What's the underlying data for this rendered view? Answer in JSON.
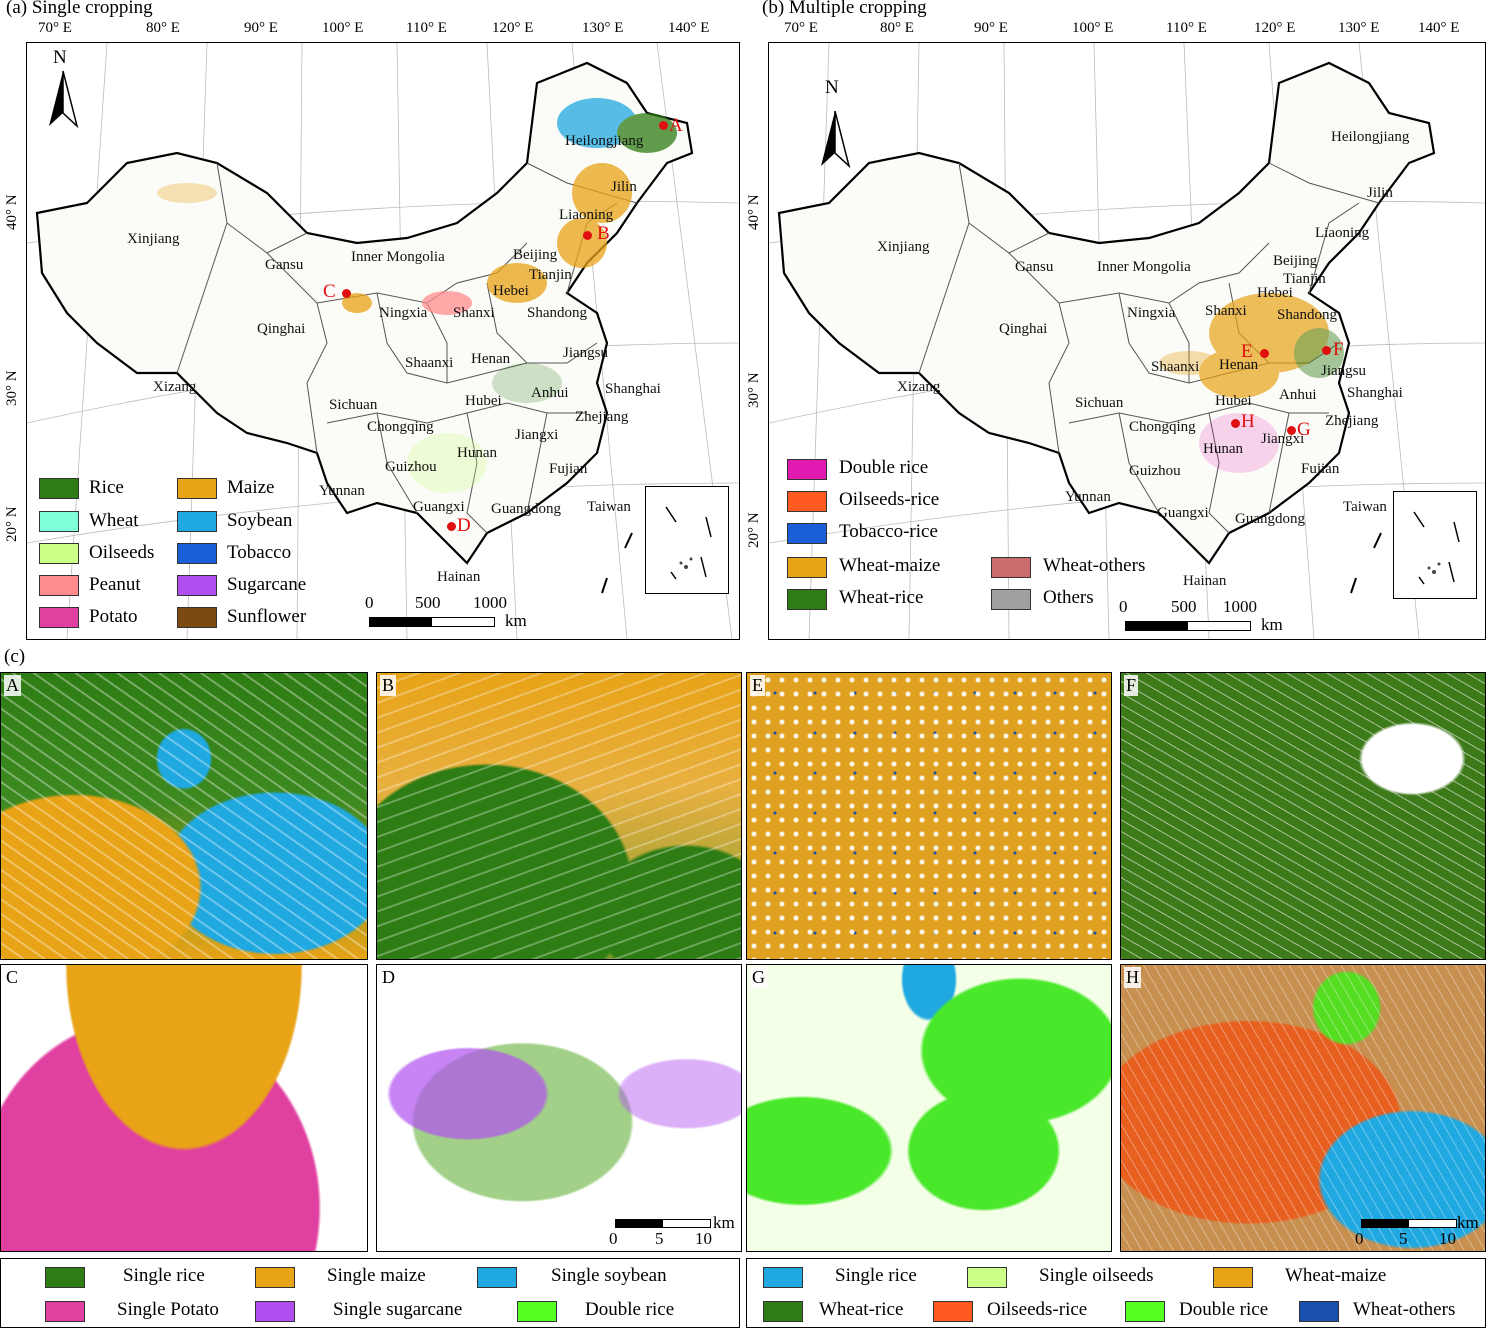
{
  "panel_a": {
    "title": "(a) Single cropping",
    "lon_labels": [
      "70° E",
      "80° E",
      "90° E",
      "100° E",
      "110° E",
      "120° E",
      "130° E",
      "140° E"
    ],
    "lat_labels": [
      "40° N",
      "30° N",
      "20° N"
    ],
    "north": "N",
    "provinces": [
      "Heilongjiang",
      "Jilin",
      "Liaoning",
      "Xinjiang",
      "Gansu",
      "Inner Mongolia",
      "Beijing",
      "Tianjin",
      "Hebei",
      "Qinghai",
      "Ningxia",
      "Shanxi",
      "Shandong",
      "Xizang",
      "Shaanxi",
      "Henan",
      "Jiangsu",
      "Anhui",
      "Shanghai",
      "Sichuan",
      "Hubei",
      "Chongqing",
      "Zhejiang",
      "Jiangxi",
      "Hunan",
      "Guizhou",
      "Fujian",
      "Yunnan",
      "Guangxi",
      "Taiwan",
      "Guangdong",
      "Hainan"
    ],
    "points": [
      "A",
      "B",
      "C",
      "D"
    ],
    "legend": [
      {
        "label": "Rice",
        "color": "#2e7d14"
      },
      {
        "label": "Maize",
        "color": "#e8a317"
      },
      {
        "label": "Wheat",
        "color": "#7fffd9"
      },
      {
        "label": "Soybean",
        "color": "#20a8e0"
      },
      {
        "label": "Oilseeds",
        "color": "#ccff88"
      },
      {
        "label": "Tobacco",
        "color": "#1a5fd6"
      },
      {
        "label": "Peanut",
        "color": "#ff8c8c"
      },
      {
        "label": "Sugarcane",
        "color": "#b04ff0"
      },
      {
        "label": "Potato",
        "color": "#e040a0"
      },
      {
        "label": "Sunflower",
        "color": "#7a4a10"
      }
    ],
    "scalebar": {
      "ticks": [
        "0",
        "500",
        "1000"
      ],
      "unit": "km"
    }
  },
  "panel_b": {
    "title": "(b) Multiple cropping",
    "lon_labels": [
      "70° E",
      "80° E",
      "90° E",
      "100° E",
      "110° E",
      "120° E",
      "130° E",
      "140° E"
    ],
    "lat_labels": [
      "40° N",
      "30° N",
      "20° N"
    ],
    "north": "N",
    "provinces": [
      "Heilongjiang",
      "Jilin",
      "Liaoning",
      "Xinjiang",
      "Gansu",
      "Inner Mongolia",
      "Beijing",
      "Tianjin",
      "Hebei",
      "Qinghai",
      "Ningxia",
      "Shanxi",
      "Shandong",
      "Xizang",
      "Shaanxi",
      "Henan",
      "Jiangsu",
      "Anhui",
      "Shanghai",
      "Sichuan",
      "Hubei",
      "Chongqing",
      "Zhejiang",
      "Jiangxi",
      "Hunan",
      "Guizhou",
      "Fujian",
      "Yunnan",
      "Guangxi",
      "Taiwan",
      "Guangdong",
      "Hainan"
    ],
    "points": [
      "E",
      "F",
      "G",
      "H"
    ],
    "legend": [
      {
        "label": "Double rice",
        "color": "#e01ab0"
      },
      {
        "label": "Oilseeds-rice",
        "color": "#ff5a1f"
      },
      {
        "label": "Tobacco-rice",
        "color": "#1a5fd6"
      },
      {
        "label": "Wheat-maize",
        "color": "#e8a317"
      },
      {
        "label": "Wheat-others",
        "color": "#cc6b6b"
      },
      {
        "label": "Wheat-rice",
        "color": "#2e7d14"
      },
      {
        "label": "Others",
        "color": "#a0a0a0"
      }
    ],
    "scalebar": {
      "ticks": [
        "0",
        "500",
        "1000"
      ],
      "unit": "km"
    }
  },
  "panel_c": {
    "title": "(c)",
    "subpanels": [
      "A",
      "B",
      "E",
      "F",
      "C",
      "D",
      "G",
      "H"
    ],
    "scalebar": {
      "ticks": [
        "0",
        "5",
        "10"
      ],
      "unit": "km"
    },
    "legend_left": [
      {
        "label": "Single rice",
        "color": "#2e7d14"
      },
      {
        "label": "Single maize",
        "color": "#e8a317"
      },
      {
        "label": "Single soybean",
        "color": "#20a8e0"
      },
      {
        "label": "Single Potato",
        "color": "#e040a0"
      },
      {
        "label": "Single sugarcane",
        "color": "#b04ff0"
      },
      {
        "label": "Double rice",
        "color": "#55ff22"
      }
    ],
    "legend_right": [
      {
        "label": "Single rice",
        "color": "#20a8e0"
      },
      {
        "label": "Single oilseeds",
        "color": "#ccff88"
      },
      {
        "label": "Wheat-maize",
        "color": "#e8a317"
      },
      {
        "label": "Wheat-rice",
        "color": "#2e7d14"
      },
      {
        "label": "Oilseeds-rice",
        "color": "#ff5a1f"
      },
      {
        "label": "Double rice",
        "color": "#55ff22"
      },
      {
        "label": "Wheat-others",
        "color": "#1a4fb0"
      }
    ]
  }
}
